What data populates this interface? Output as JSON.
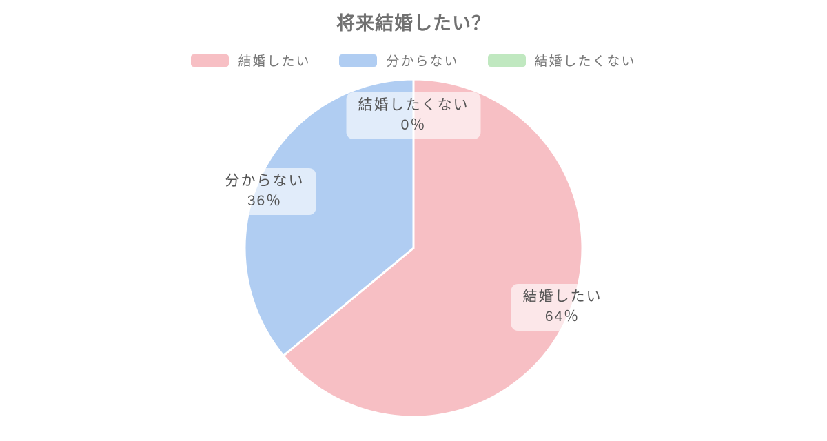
{
  "title": "将来結婚したい？",
  "legend": {
    "items": [
      {
        "label": "結婚したい",
        "color": "#F7BFC4"
      },
      {
        "label": "分からない",
        "color": "#B0CDF2"
      },
      {
        "label": "結婚したくない",
        "color": "#C0E8C0"
      }
    ]
  },
  "slice_labels": [
    {
      "line1": "結婚したい",
      "line2": "64％"
    },
    {
      "line1": "分からない",
      "line2": "36％"
    },
    {
      "line1": "結婚したくない",
      "line2": "0％"
    }
  ],
  "colors": {
    "slice_want": "#F7BFC4",
    "slice_unknown": "#B0CDF2",
    "slice_no": "#C0E8C0",
    "slice_border": "#FFFFFF",
    "title_text": "#717171",
    "legend_text": "#777777",
    "label_text": "#555555"
  },
  "chart_data": {
    "type": "pie",
    "title": "将来結婚したい？",
    "categories": [
      "結婚したい",
      "分からない",
      "結婚したくない"
    ],
    "values": [
      64,
      36,
      0
    ],
    "unit": "%",
    "colors": [
      "#F7BFC4",
      "#B0CDF2",
      "#C0E8C0"
    ],
    "legend_position": "top",
    "start_angle_deg": 0,
    "direction": "clockwise",
    "labels_on_chart": [
      "結婚したい 64％",
      "分からない 36％",
      "結婚したくない 0％"
    ]
  }
}
